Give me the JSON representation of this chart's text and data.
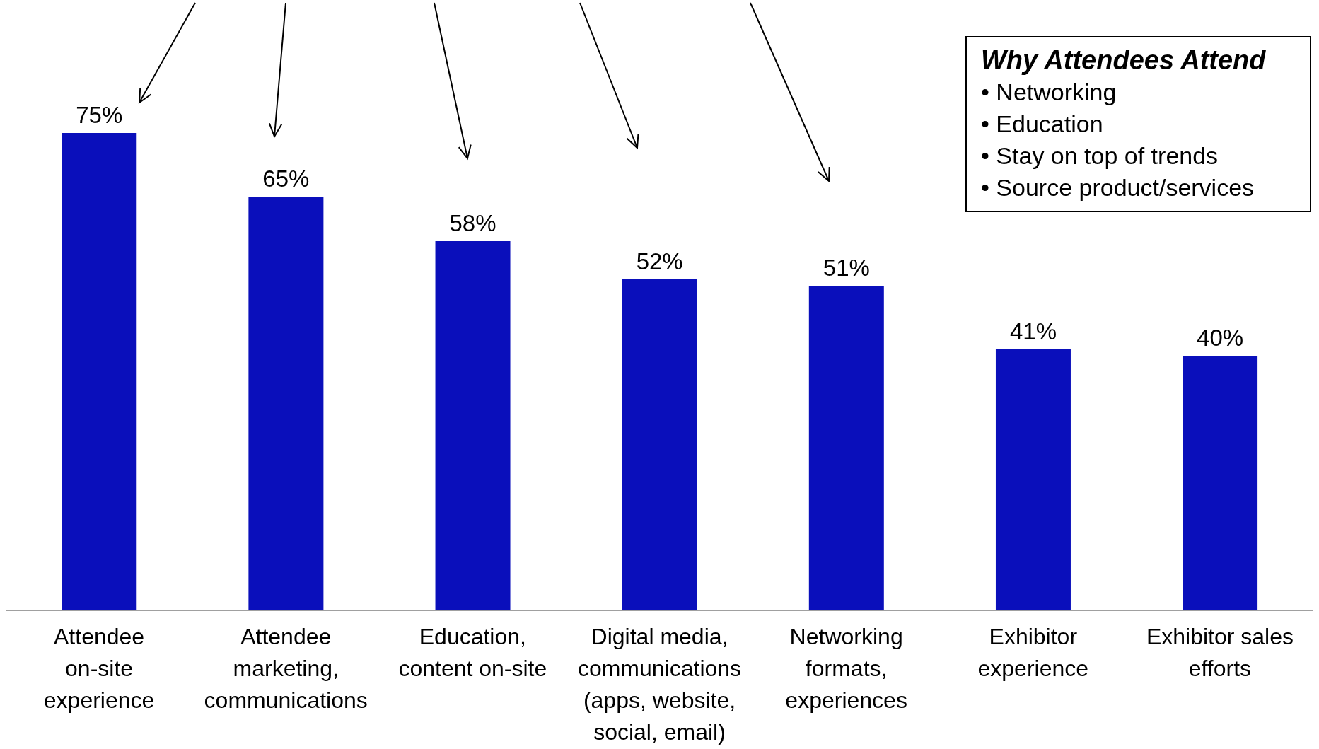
{
  "chart_data": {
    "type": "bar",
    "categories": [
      "Attendee on-site experience",
      "Attendee marketing, communications",
      "Education, content on-site",
      "Digital media, communications (apps, website, social, email)",
      "Networking formats, experiences",
      "Exhibitor experience",
      "Exhibitor sales efforts"
    ],
    "values": [
      75,
      65,
      58,
      52,
      51,
      41,
      40
    ],
    "value_labels": [
      "75%",
      "65%",
      "58%",
      "52%",
      "51%",
      "41%",
      "40%"
    ],
    "color": "#0a0fbb",
    "annotations": [
      "Why Attendees Attend",
      "• Networking",
      "• Education",
      "• Stay on top of trends",
      "• Source product/services"
    ]
  }
}
